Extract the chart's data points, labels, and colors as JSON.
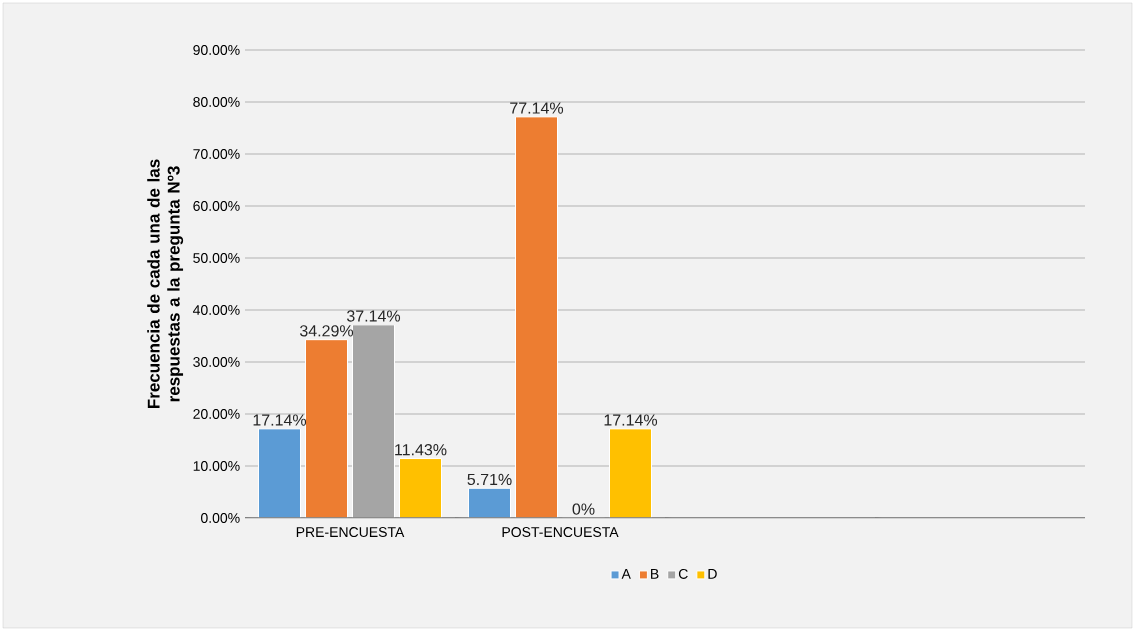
{
  "chart_data": {
    "type": "bar",
    "ylabel": "Frecuencia de cada una de las respuestas a la pregunta Nº3",
    "categories": [
      "PRE-ENCUESTA",
      "POST-ENCUESTA",
      null,
      null
    ],
    "series": [
      {
        "name": "A",
        "color": "#5b9bd5",
        "values": [
          17.14,
          5.71,
          null,
          null
        ],
        "value_labels": [
          "17.14%",
          "5.71%",
          null,
          null
        ]
      },
      {
        "name": "B",
        "color": "#ed7d31",
        "values": [
          34.29,
          77.14,
          null,
          null
        ],
        "value_labels": [
          "34.29%",
          "77.14%",
          null,
          null
        ]
      },
      {
        "name": "C",
        "color": "#a5a5a5",
        "values": [
          37.14,
          0,
          null,
          null
        ],
        "value_labels": [
          "37.14%",
          "0%",
          null,
          null
        ]
      },
      {
        "name": "D",
        "color": "#ffc000",
        "values": [
          11.43,
          17.14,
          null,
          null
        ],
        "value_labels": [
          "11.43%",
          "17.14%",
          null,
          null
        ]
      }
    ],
    "ylim": [
      0,
      90
    ],
    "yticks": [
      {
        "value": 0,
        "label": "0.00%"
      },
      {
        "value": 10,
        "label": "10.00%"
      },
      {
        "value": 20,
        "label": "20.00%"
      },
      {
        "value": 30,
        "label": "30.00%"
      },
      {
        "value": 40,
        "label": "40.00%"
      },
      {
        "value": 50,
        "label": "50.00%"
      },
      {
        "value": 60,
        "label": "60.00%"
      },
      {
        "value": 70,
        "label": "70.00%"
      },
      {
        "value": 80,
        "label": "80.00%"
      },
      {
        "value": 90,
        "label": "90.00%"
      }
    ],
    "grid": "y",
    "legend": "bottom"
  }
}
